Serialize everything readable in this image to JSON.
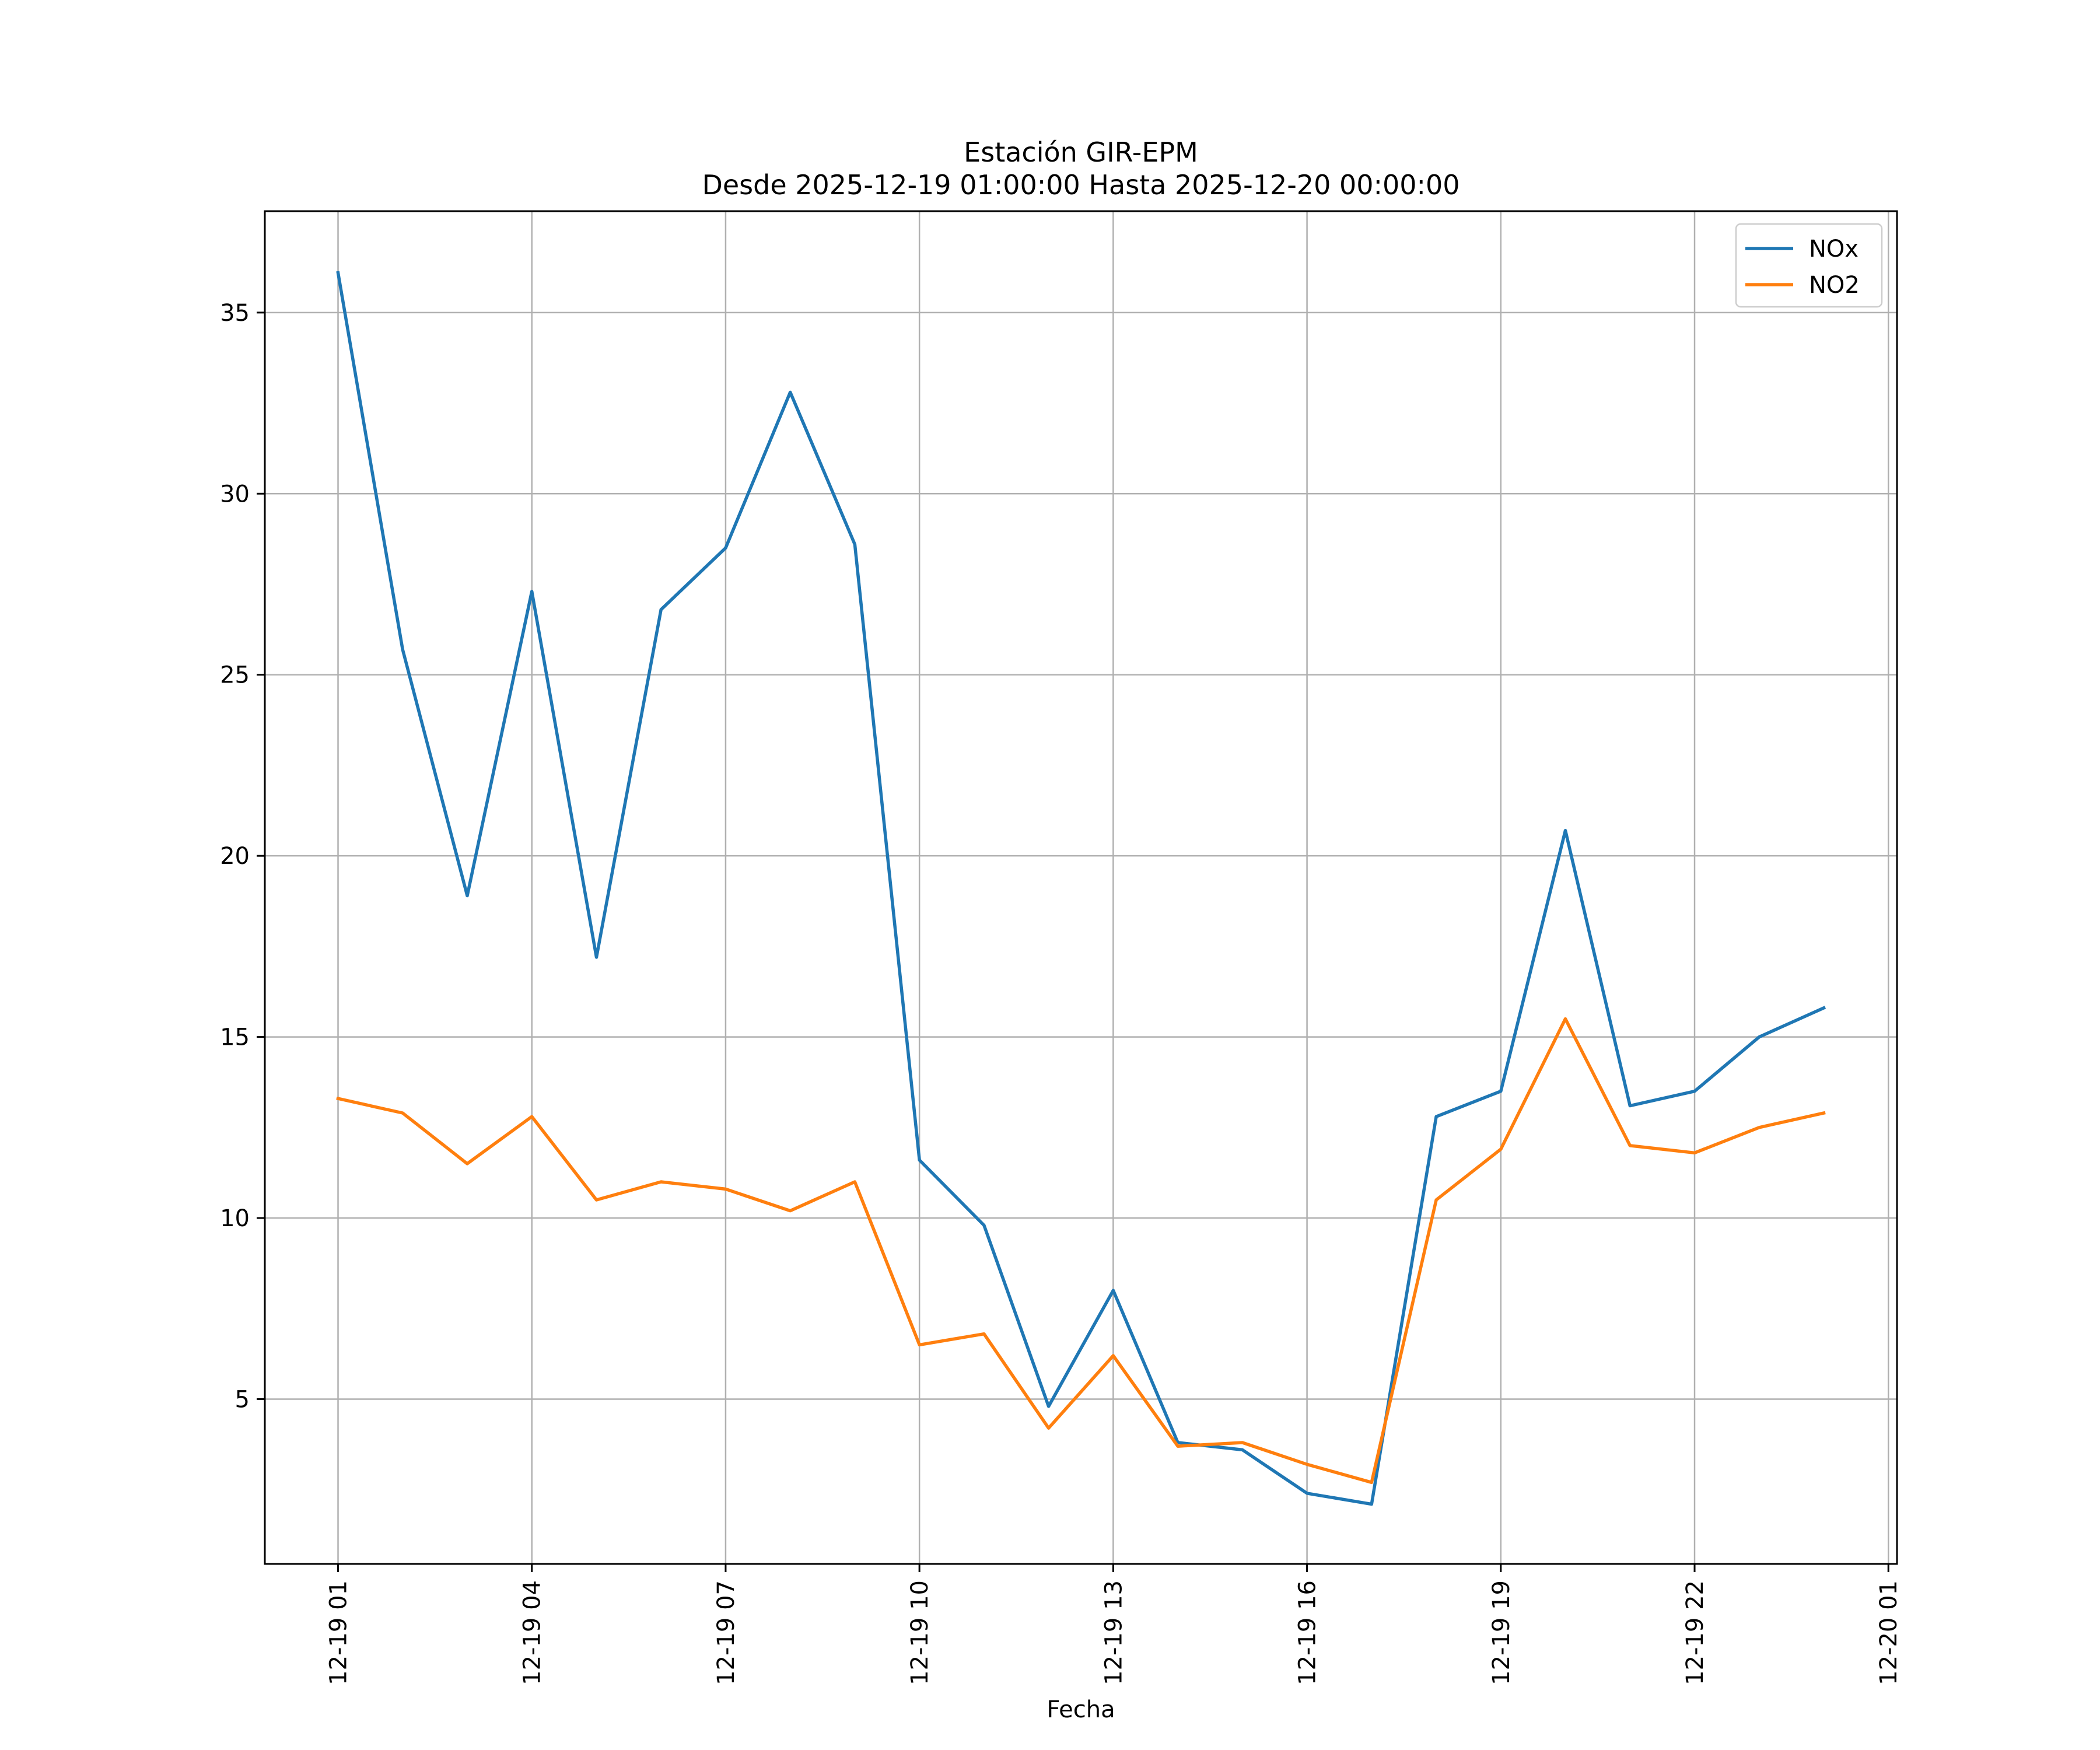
{
  "chart_data": {
    "type": "line",
    "title": "Estación GIR-EPM",
    "subtitle": "Desde 2025-12-19 01:00:00 Hasta 2025-12-20 00:00:00",
    "xlabel": "Fecha",
    "ylabel": "",
    "x": [
      "2025-12-19 01:00",
      "2025-12-19 02:00",
      "2025-12-19 03:00",
      "2025-12-19 04:00",
      "2025-12-19 05:00",
      "2025-12-19 06:00",
      "2025-12-19 07:00",
      "2025-12-19 08:00",
      "2025-12-19 09:00",
      "2025-12-19 10:00",
      "2025-12-19 11:00",
      "2025-12-19 12:00",
      "2025-12-19 13:00",
      "2025-12-19 14:00",
      "2025-12-19 15:00",
      "2025-12-19 16:00",
      "2025-12-19 17:00",
      "2025-12-19 18:00",
      "2025-12-19 19:00",
      "2025-12-19 20:00",
      "2025-12-19 21:00",
      "2025-12-19 22:00",
      "2025-12-19 23:00",
      "2025-12-20 00:00"
    ],
    "series": [
      {
        "name": "NOx",
        "color": "#1f77b4",
        "values": [
          36.1,
          25.7,
          18.9,
          27.3,
          17.2,
          26.8,
          28.5,
          32.8,
          28.6,
          11.6,
          9.8,
          4.8,
          8.0,
          3.8,
          3.6,
          2.4,
          2.1,
          12.8,
          13.5,
          20.7,
          13.1,
          13.5,
          15.0,
          15.8
        ]
      },
      {
        "name": "NO2",
        "color": "#ff7f0e",
        "values": [
          13.3,
          12.9,
          11.5,
          12.8,
          10.5,
          11.0,
          10.8,
          10.2,
          11.0,
          6.5,
          6.8,
          4.2,
          6.2,
          3.7,
          3.8,
          3.2,
          2.7,
          10.5,
          11.9,
          15.5,
          12.0,
          11.8,
          12.5,
          12.9
        ]
      }
    ],
    "xlim": [
      "2025-12-18 23:52",
      "2025-12-20 01:08"
    ],
    "ylim": [
      0.45,
      37.8
    ],
    "xticks": [
      {
        "x": "2025-12-19 01:00",
        "label": "12-19 01"
      },
      {
        "x": "2025-12-19 04:00",
        "label": "12-19 04"
      },
      {
        "x": "2025-12-19 07:00",
        "label": "12-19 07"
      },
      {
        "x": "2025-12-19 10:00",
        "label": "12-19 10"
      },
      {
        "x": "2025-12-19 13:00",
        "label": "12-19 13"
      },
      {
        "x": "2025-12-19 16:00",
        "label": "12-19 16"
      },
      {
        "x": "2025-12-19 19:00",
        "label": "12-19 19"
      },
      {
        "x": "2025-12-19 22:00",
        "label": "12-19 22"
      },
      {
        "x": "2025-12-20 01:00",
        "label": "12-20 01"
      }
    ],
    "yticks": [
      {
        "y": 5,
        "label": "5"
      },
      {
        "y": 10,
        "label": "10"
      },
      {
        "y": 15,
        "label": "15"
      },
      {
        "y": 20,
        "label": "20"
      },
      {
        "y": 25,
        "label": "25"
      },
      {
        "y": 30,
        "label": "30"
      },
      {
        "y": 35,
        "label": "35"
      }
    ],
    "grid": true,
    "legend_position": "top-right"
  }
}
